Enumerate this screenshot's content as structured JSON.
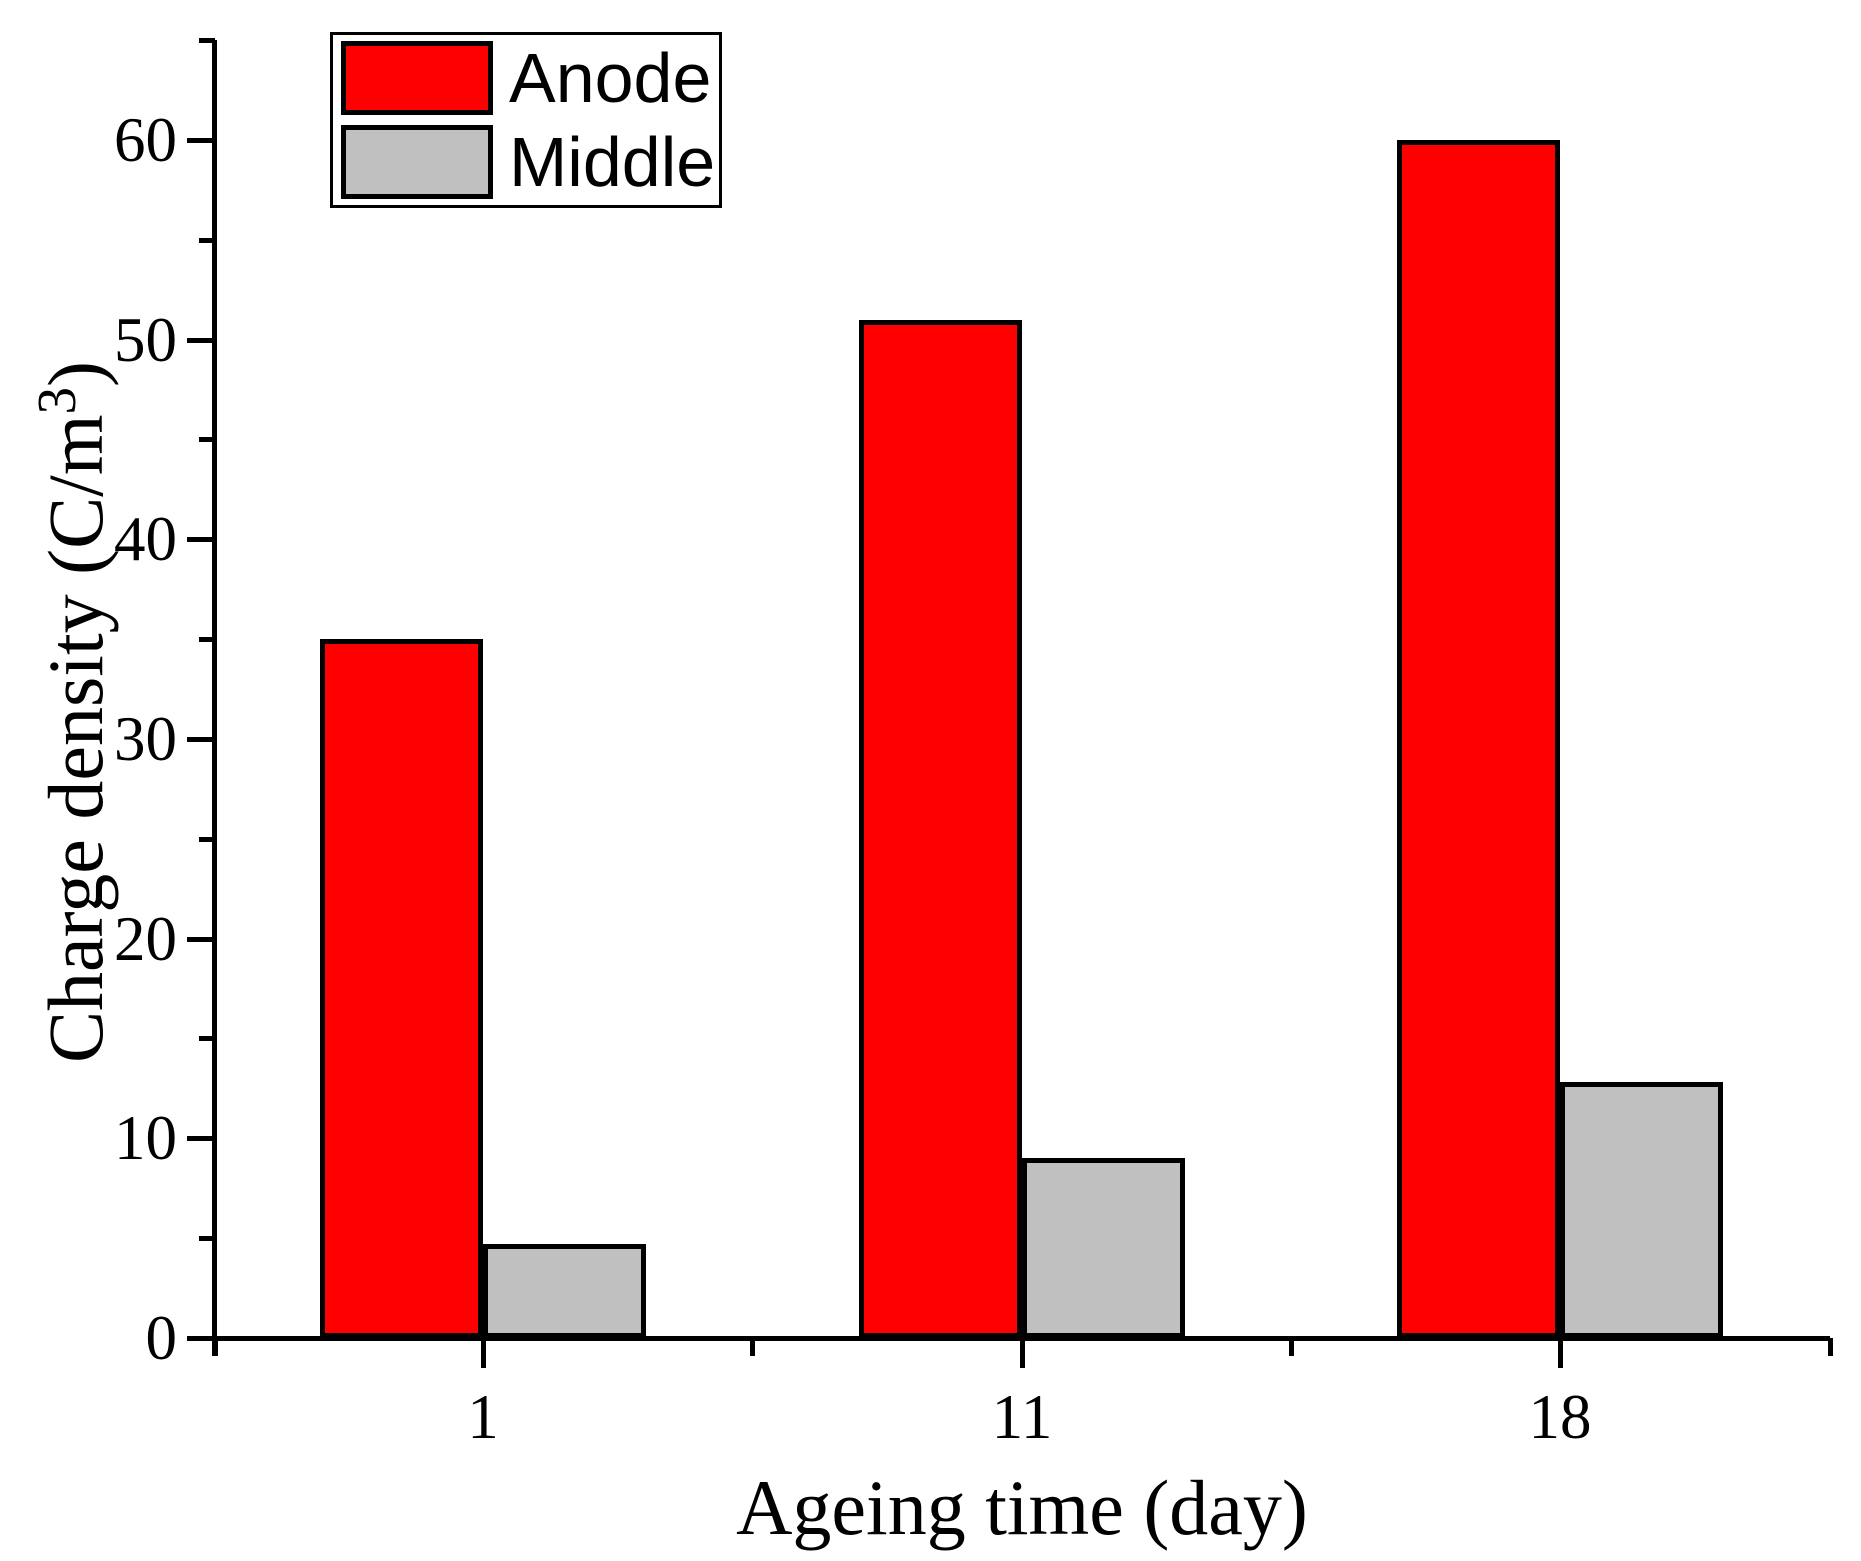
{
  "chart_data": {
    "type": "bar",
    "title": "",
    "xlabel": "Ageing time (day)",
    "ylabel": "Charge density (C/m³)",
    "ylabel_parts": {
      "prefix": "Charge density (C/m",
      "sup": "3",
      "suffix": ")"
    },
    "categories": [
      "1",
      "11",
      "18"
    ],
    "series": [
      {
        "name": "Anode",
        "color": "#FF0000",
        "values": [
          35,
          51,
          60
        ]
      },
      {
        "name": "Middle",
        "color": "#C0C0C0",
        "values": [
          4.7,
          9,
          12.8
        ]
      }
    ],
    "ylim": [
      0,
      65
    ],
    "y_major_ticks": [
      0,
      10,
      20,
      30,
      40,
      50,
      60
    ],
    "y_minor_ticks": [
      5,
      15,
      25,
      35,
      45,
      55,
      65
    ],
    "x_tick_labels": [
      "1",
      "11",
      "18"
    ],
    "grid": false,
    "legend_position": "top-left",
    "bar_edge_color": "#000000",
    "axis_color": "#000000"
  }
}
